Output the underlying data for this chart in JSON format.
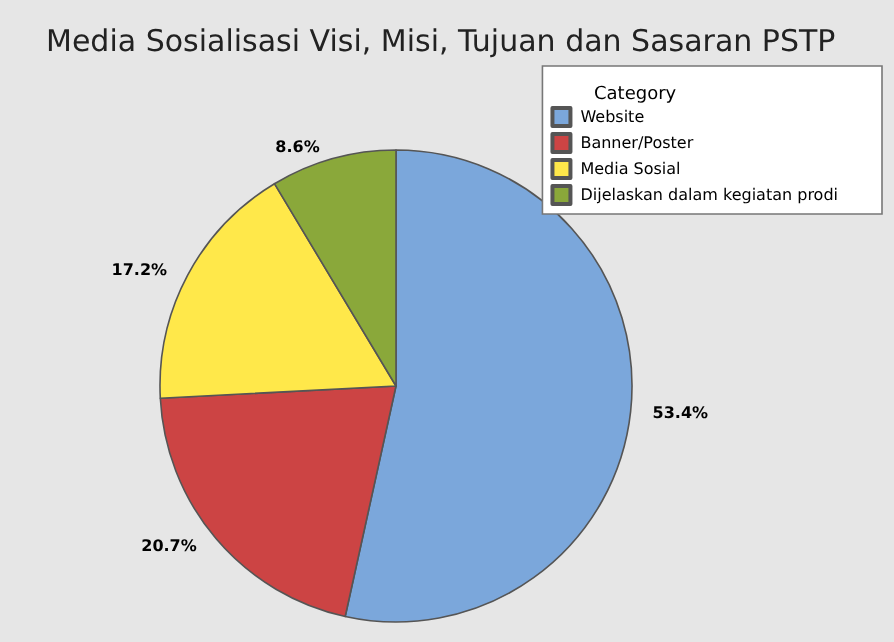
{
  "chart_data": {
    "type": "pie",
    "title": "Media Sosialisasi Visi, Misi, Tujuan dan Sasaran PSTP",
    "legend_title": "Category",
    "categories": [
      "Website",
      "Banner/Poster",
      "Media Sosial",
      "Dijelaskan dalam kegiatan prodi"
    ],
    "values": [
      53.4,
      20.7,
      17.2,
      8.6
    ],
    "colors": [
      "#7ba7db",
      "#cc4444",
      "#ffe84a",
      "#8aa83a"
    ],
    "value_labels": [
      "53.4%",
      "20.7%",
      "17.2%",
      "8.6%"
    ],
    "legend": "top right"
  }
}
